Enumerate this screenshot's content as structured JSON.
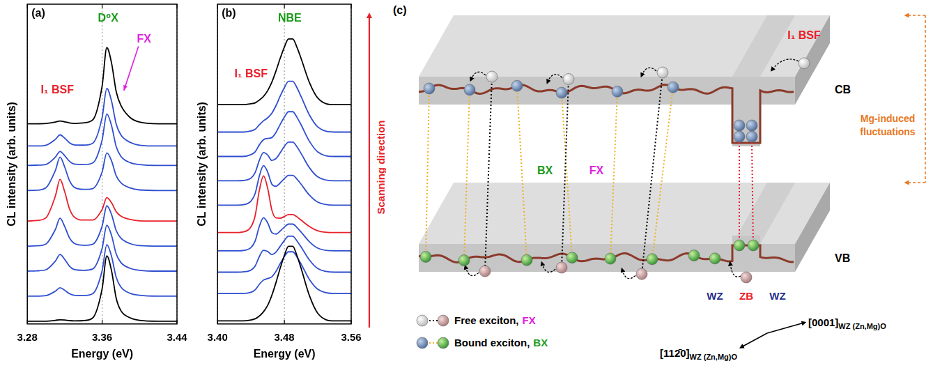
{
  "chart_data": [
    {
      "type": "line",
      "panel": "(a)",
      "x_label": "Energy (eV)",
      "y_label": "CL intensity (arb. units)",
      "xlim": [
        3.28,
        3.44
      ],
      "xticks": [
        3.28,
        3.36,
        3.44
      ],
      "ylim": [
        0,
        11.5
      ],
      "grid": true,
      "tick_labels": "x",
      "annotations": [
        {
          "text": "D⁰X",
          "color": "#1a9a1a"
        },
        {
          "text": "FX",
          "color": "#e020e0"
        },
        {
          "text": "I₁ BSF",
          "color": "#e8202a"
        }
      ],
      "x": [
        3.28,
        3.29,
        3.3,
        3.31,
        3.315,
        3.32,
        3.325,
        3.33,
        3.34,
        3.35,
        3.36,
        3.365,
        3.37,
        3.375,
        3.38,
        3.39,
        3.4,
        3.42,
        3.44
      ],
      "series": [
        {
          "color": "#000000",
          "values": [
            0.1,
            0.1,
            0.1,
            0.13,
            0.15,
            0.14,
            0.12,
            0.11,
            0.12,
            0.22,
            1.27,
            2.45,
            1.92,
            0.93,
            0.48,
            0.22,
            0.13,
            0.1,
            0.1
          ]
        },
        {
          "color": "#2f4fd0",
          "values": [
            1.0,
            1.0,
            1.02,
            1.18,
            1.3,
            1.21,
            1.09,
            1.03,
            1.02,
            1.09,
            1.92,
            2.85,
            2.44,
            1.68,
            1.33,
            1.1,
            1.03,
            1.0,
            1.0
          ]
        },
        {
          "color": "#2f4fd0",
          "values": [
            1.9,
            1.91,
            1.95,
            2.26,
            2.5,
            2.32,
            2.08,
            1.96,
            1.93,
            1.98,
            2.72,
            3.55,
            3.19,
            2.52,
            2.21,
            2.0,
            1.93,
            1.9,
            1.9
          ]
        },
        {
          "color": "#2f4fd0",
          "values": [
            2.8,
            2.81,
            2.88,
            3.4,
            3.8,
            3.5,
            3.1,
            2.9,
            2.83,
            2.87,
            3.52,
            4.25,
            3.94,
            3.36,
            3.09,
            2.89,
            2.82,
            2.8,
            2.8
          ]
        },
        {
          "color": "#e8202a",
          "values": [
            3.7,
            3.72,
            3.82,
            4.6,
            5.2,
            4.75,
            4.15,
            3.85,
            3.74,
            3.74,
            4.12,
            4.54,
            4.36,
            4.04,
            3.88,
            3.76,
            3.71,
            3.7,
            3.7
          ]
        },
        {
          "color": "#2f4fd0",
          "values": [
            4.8,
            4.81,
            4.9,
            5.52,
            6.0,
            5.64,
            5.16,
            4.92,
            4.84,
            4.87,
            5.47,
            6.15,
            5.87,
            5.33,
            5.08,
            4.89,
            4.82,
            4.8,
            4.8
          ]
        },
        {
          "color": "#2f4fd0",
          "values": [
            5.7,
            5.71,
            5.74,
            6.0,
            6.2,
            6.05,
            5.85,
            5.75,
            5.73,
            5.79,
            6.62,
            7.55,
            7.14,
            6.38,
            6.03,
            5.8,
            5.73,
            5.7,
            5.7
          ]
        },
        {
          "color": "#2f4fd0",
          "values": [
            6.4,
            6.4,
            6.43,
            6.64,
            6.8,
            6.68,
            6.52,
            6.44,
            6.43,
            6.5,
            7.43,
            8.47,
            8.02,
            7.19,
            6.8,
            6.53,
            6.43,
            6.4,
            6.4
          ]
        },
        {
          "color": "#000000",
          "values": [
            7.2,
            7.2,
            7.21,
            7.26,
            7.3,
            7.27,
            7.23,
            7.21,
            7.23,
            7.34,
            8.56,
            9.94,
            9.39,
            8.36,
            7.86,
            7.42,
            7.26,
            7.2,
            7.2
          ]
        }
      ]
    },
    {
      "type": "line",
      "panel": "(b)",
      "x_label": "Energy (eV)",
      "y_label": "CL intensity (arb. units)",
      "xlim": [
        3.4,
        3.56
      ],
      "xticks": [
        {
          "value": 3.4,
          "label": "3.40"
        },
        3.48,
        3.56
      ],
      "ylim": [
        0,
        10.5
      ],
      "grid": true,
      "tick_labels": "x",
      "annotations": [
        {
          "text": "NBE",
          "color": "#1a9a1a"
        },
        {
          "text": "I₁ BSF",
          "color": "#e8202a"
        }
      ],
      "side_label": {
        "text": "Scanning direction",
        "color": "#e8202a"
      },
      "x": [
        3.4,
        3.42,
        3.43,
        3.44,
        3.445,
        3.45,
        3.455,
        3.46,
        3.465,
        3.47,
        3.475,
        3.48,
        3.485,
        3.49,
        3.495,
        3.5,
        3.51,
        3.52,
        3.54,
        3.56
      ],
      "series": [
        {
          "color": "#000000",
          "values": [
            0.1,
            0.1,
            0.1,
            0.13,
            0.17,
            0.26,
            0.4,
            0.61,
            0.94,
            1.36,
            1.83,
            2.25,
            2.55,
            2.55,
            2.25,
            1.83,
            0.93,
            0.35,
            0.1,
            0.1
          ]
        },
        {
          "color": "#2f4fd0",
          "values": [
            1.0,
            1.0,
            1.0,
            1.04,
            1.12,
            1.3,
            1.44,
            1.49,
            1.55,
            1.73,
            1.98,
            2.21,
            2.37,
            2.37,
            2.2,
            1.97,
            1.46,
            1.14,
            1.0,
            1.0
          ]
        },
        {
          "color": "#2f4fd0",
          "values": [
            1.7,
            1.7,
            1.71,
            1.77,
            1.9,
            2.21,
            2.42,
            2.38,
            2.28,
            2.36,
            2.55,
            2.74,
            2.88,
            2.88,
            2.73,
            2.53,
            2.1,
            1.82,
            1.7,
            1.7
          ]
        },
        {
          "color": "#2f4fd0",
          "values": [
            2.4,
            2.4,
            2.41,
            2.51,
            2.72,
            3.2,
            3.49,
            3.32,
            3.0,
            2.95,
            3.05,
            3.18,
            3.28,
            3.28,
            3.17,
            3.02,
            2.7,
            2.49,
            2.4,
            2.4
          ]
        },
        {
          "color": "#e8202a",
          "values": [
            3.0,
            3.0,
            3.02,
            3.19,
            3.55,
            4.38,
            4.86,
            4.46,
            3.74,
            3.48,
            3.47,
            3.53,
            3.59,
            3.59,
            3.52,
            3.41,
            3.2,
            3.06,
            3.0,
            3.0
          ]
        },
        {
          "color": "#2f4fd0",
          "values": [
            3.9,
            3.9,
            3.91,
            4.03,
            4.28,
            4.85,
            5.2,
            4.99,
            4.59,
            4.52,
            4.63,
            4.77,
            4.88,
            4.88,
            4.76,
            4.59,
            4.23,
            4.0,
            3.9,
            3.9
          ]
        },
        {
          "color": "#2f4fd0",
          "values": [
            4.7,
            4.7,
            4.71,
            4.79,
            4.97,
            5.37,
            5.63,
            5.55,
            5.37,
            5.43,
            5.62,
            5.83,
            5.97,
            5.97,
            5.82,
            5.6,
            5.13,
            4.83,
            4.7,
            4.7
          ]
        },
        {
          "color": "#2f4fd0",
          "values": [
            5.5,
            5.5,
            5.5,
            5.56,
            5.65,
            5.88,
            6.05,
            6.09,
            6.12,
            6.29,
            6.55,
            6.79,
            6.97,
            6.97,
            6.79,
            6.54,
            6.0,
            5.65,
            5.5,
            5.5
          ]
        },
        {
          "color": "#2f4fd0",
          "values": [
            6.3,
            6.3,
            6.3,
            6.34,
            6.39,
            6.54,
            6.67,
            6.77,
            6.92,
            7.17,
            7.48,
            7.76,
            7.97,
            7.97,
            7.76,
            7.47,
            6.86,
            6.47,
            6.3,
            6.3
          ]
        },
        {
          "color": "#000000",
          "values": [
            7.2,
            7.2,
            7.2,
            7.23,
            7.26,
            7.35,
            7.47,
            7.66,
            7.94,
            8.31,
            8.72,
            9.09,
            9.36,
            9.36,
            9.09,
            8.72,
            7.93,
            7.42,
            7.2,
            7.2
          ]
        }
      ]
    }
  ],
  "diagram": {
    "panel": "(c)",
    "defect": {
      "text": "I₁ BSF",
      "color": "#e8202a"
    },
    "bands": [
      "CB",
      "VB"
    ],
    "transitions": [
      {
        "text": "BX",
        "color": "#1a9a1a"
      },
      {
        "text": "FX",
        "color": "#e020e0"
      }
    ],
    "fluctuations": {
      "text": "Mg-induced fluctuations",
      "color": "#e87722"
    },
    "phases": [
      {
        "text": "WZ",
        "color": "#1f2f8f"
      },
      {
        "text": "ZB",
        "color": "#e8202a"
      },
      {
        "text": "WZ",
        "color": "#1f2f8f"
      }
    ],
    "key_items": [
      {
        "label": "Free exciton,",
        "abbr": "FX",
        "color": "#e020e0"
      },
      {
        "label": "Bound exciton,",
        "abbr": "BX",
        "color": "#1a9a1a"
      }
    ],
    "directions": [
      {
        "text": "[0001]",
        "subscript": "WZ (Zn,Mg)O"
      },
      {
        "text": "[112̄0]",
        "subscript": "WZ (Zn,Mg)O"
      }
    ]
  }
}
